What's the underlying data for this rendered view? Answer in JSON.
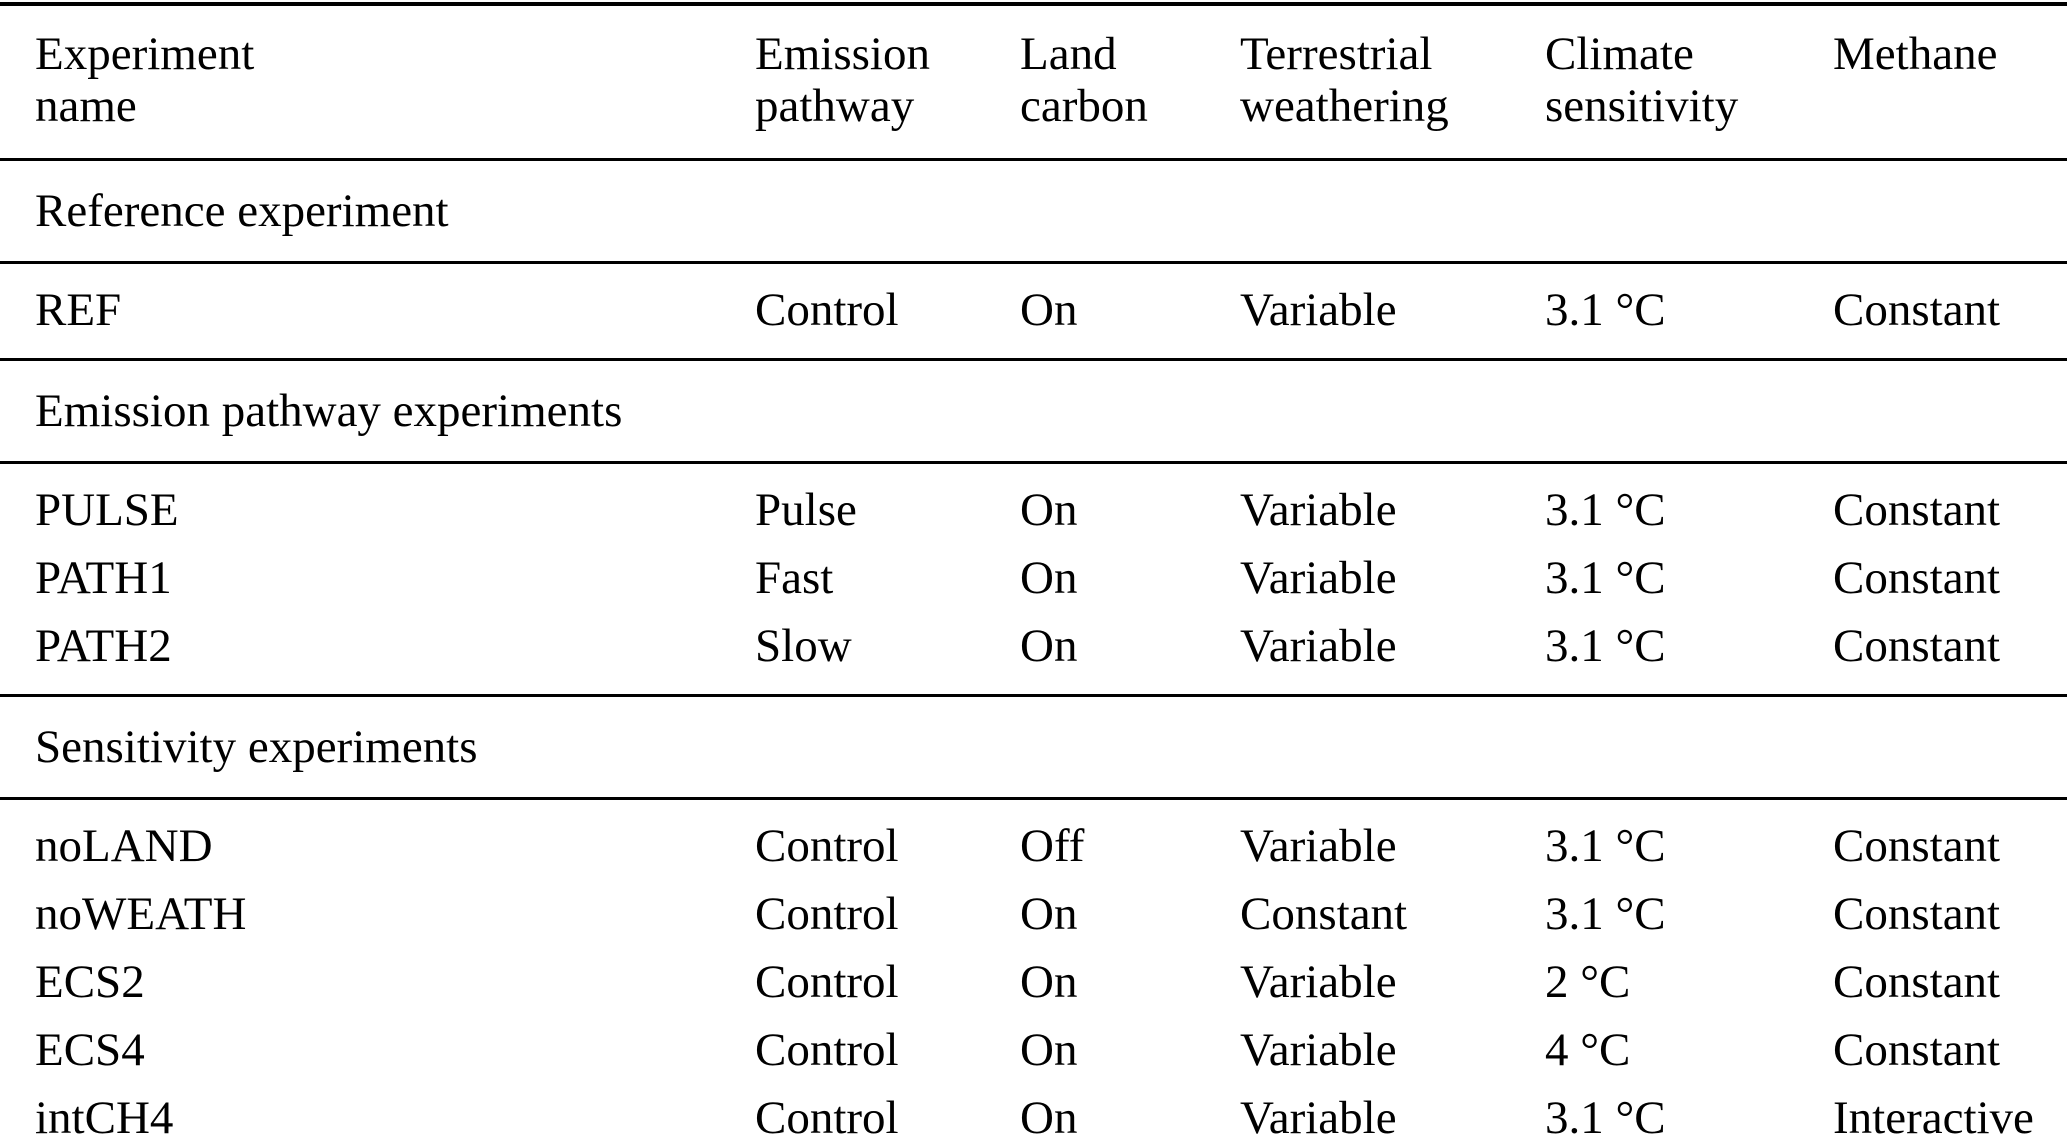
{
  "page": {
    "background_color": "#ffffff",
    "text_color": "#000000",
    "rule_color": "#000000"
  },
  "table": {
    "header": {
      "columns": [
        {
          "line1": "Experiment",
          "line2": "name"
        },
        {
          "line1": "Emission",
          "line2": "pathway"
        },
        {
          "line1": "Land",
          "line2": "carbon"
        },
        {
          "line1": "Terrestrial",
          "line2": "weathering"
        },
        {
          "line1": "Climate",
          "line2": "sensitivity"
        },
        {
          "line1": "Methane",
          "line2": ""
        }
      ]
    },
    "sections": [
      {
        "title": "Reference experiment",
        "rows": [
          {
            "name": "REF",
            "emission_pathway": "Control",
            "land_carbon": "On",
            "terrestrial_weathering": "Variable",
            "climate_sensitivity": "3.1 °C",
            "methane": "Constant"
          }
        ]
      },
      {
        "title": "Emission pathway experiments",
        "rows": [
          {
            "name": "PULSE",
            "emission_pathway": "Pulse",
            "land_carbon": "On",
            "terrestrial_weathering": "Variable",
            "climate_sensitivity": "3.1 °C",
            "methane": "Constant"
          },
          {
            "name": "PATH1",
            "emission_pathway": "Fast",
            "land_carbon": "On",
            "terrestrial_weathering": "Variable",
            "climate_sensitivity": "3.1 °C",
            "methane": "Constant"
          },
          {
            "name": "PATH2",
            "emission_pathway": "Slow",
            "land_carbon": "On",
            "terrestrial_weathering": "Variable",
            "climate_sensitivity": "3.1 °C",
            "methane": "Constant"
          }
        ]
      },
      {
        "title": "Sensitivity experiments",
        "rows": [
          {
            "name": "noLAND",
            "emission_pathway": "Control",
            "land_carbon": "Off",
            "terrestrial_weathering": "Variable",
            "climate_sensitivity": "3.1 °C",
            "methane": "Constant"
          },
          {
            "name": "noWEATH",
            "emission_pathway": "Control",
            "land_carbon": "On",
            "terrestrial_weathering": "Constant",
            "climate_sensitivity": "3.1 °C",
            "methane": "Constant"
          },
          {
            "name": "ECS2",
            "emission_pathway": "Control",
            "land_carbon": "On",
            "terrestrial_weathering": "Variable",
            "climate_sensitivity": "2 °C",
            "methane": "Constant"
          },
          {
            "name": "ECS4",
            "emission_pathway": "Control",
            "land_carbon": "On",
            "terrestrial_weathering": "Variable",
            "climate_sensitivity": "4 °C",
            "methane": "Constant"
          },
          {
            "name": "intCH4",
            "emission_pathway": "Control",
            "land_carbon": "On",
            "terrestrial_weathering": "Variable",
            "climate_sensitivity": "3.1 °C",
            "methane": "Interactive"
          }
        ]
      }
    ]
  }
}
